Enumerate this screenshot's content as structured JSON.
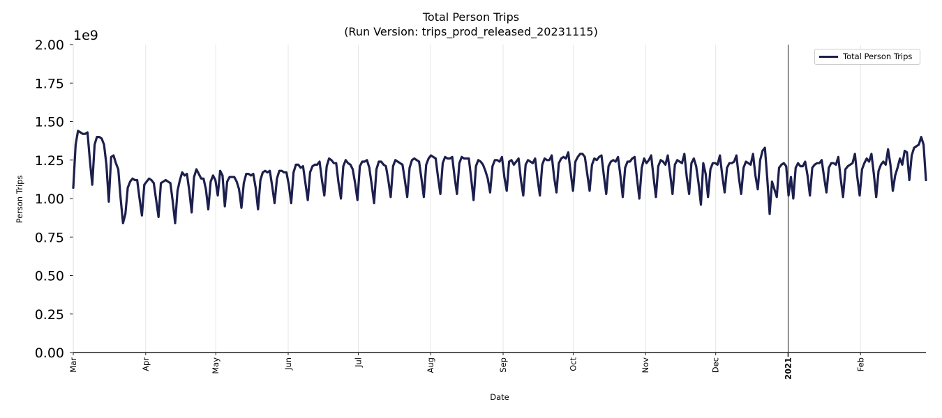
{
  "chart_data": {
    "type": "line",
    "title": "Total Person Trips",
    "subtitle": "(Run Version: trips_prod_released_20231115)",
    "xlabel": "Date",
    "ylabel": "Person Trips",
    "y_offset_label": "1e9",
    "ylim": [
      0,
      2.0
    ],
    "y_scale_multiplier": 1000000000,
    "yticks": [
      "0.00",
      "0.25",
      "0.50",
      "0.75",
      "1.00",
      "1.25",
      "1.50",
      "1.75",
      "2.00"
    ],
    "xticks": [
      {
        "label": "Mar",
        "day": 0,
        "bold": false
      },
      {
        "label": "Apr",
        "day": 31,
        "bold": false
      },
      {
        "label": "May",
        "day": 61,
        "bold": false
      },
      {
        "label": "Jun",
        "day": 92,
        "bold": false
      },
      {
        "label": "Jul",
        "day": 122,
        "bold": false
      },
      {
        "label": "Aug",
        "day": 153,
        "bold": false
      },
      {
        "label": "Sep",
        "day": 184,
        "bold": false
      },
      {
        "label": "Oct",
        "day": 214,
        "bold": false
      },
      {
        "label": "Nov",
        "day": 245,
        "bold": false
      },
      {
        "label": "Dec",
        "day": 275,
        "bold": false
      },
      {
        "label": "2021",
        "day": 306,
        "bold": true
      },
      {
        "label": "Feb",
        "day": 337,
        "bold": false
      }
    ],
    "x_start": "2020-03-01",
    "x_end": "2021-02-28",
    "vertical_marker": {
      "day": 306,
      "label": "2021-01-01"
    },
    "grid": {
      "x": true,
      "y": false
    },
    "legend": {
      "position": "upper right",
      "entries": [
        "Total Person Trips"
      ]
    },
    "series": [
      {
        "name": "Total Person Trips",
        "color": "#1c1f4d",
        "unit": "1e9",
        "x_day_offset": 0,
        "values": [
          1.07,
          1.35,
          1.44,
          1.43,
          1.42,
          1.42,
          1.43,
          1.25,
          1.09,
          1.35,
          1.4,
          1.4,
          1.39,
          1.35,
          1.22,
          0.98,
          1.27,
          1.28,
          1.23,
          1.19,
          1.0,
          0.84,
          0.9,
          1.07,
          1.11,
          1.13,
          1.12,
          1.12,
          1.0,
          0.89,
          1.09,
          1.11,
          1.13,
          1.12,
          1.1,
          0.99,
          0.88,
          1.1,
          1.11,
          1.12,
          1.11,
          1.1,
          0.98,
          0.84,
          1.05,
          1.12,
          1.17,
          1.15,
          1.16,
          1.05,
          0.91,
          1.14,
          1.19,
          1.16,
          1.13,
          1.13,
          1.06,
          0.93,
          1.11,
          1.15,
          1.12,
          1.02,
          1.18,
          1.15,
          0.95,
          1.11,
          1.14,
          1.14,
          1.14,
          1.11,
          1.06,
          0.94,
          1.1,
          1.16,
          1.16,
          1.15,
          1.16,
          1.07,
          0.93,
          1.12,
          1.17,
          1.18,
          1.17,
          1.18,
          1.08,
          0.97,
          1.13,
          1.18,
          1.18,
          1.17,
          1.17,
          1.09,
          0.97,
          1.17,
          1.22,
          1.22,
          1.2,
          1.21,
          1.1,
          0.99,
          1.17,
          1.21,
          1.22,
          1.22,
          1.24,
          1.12,
          1.02,
          1.21,
          1.26,
          1.25,
          1.23,
          1.23,
          1.1,
          1.0,
          1.21,
          1.25,
          1.23,
          1.22,
          1.19,
          1.1,
          0.99,
          1.21,
          1.24,
          1.24,
          1.25,
          1.2,
          1.09,
          0.97,
          1.19,
          1.24,
          1.24,
          1.22,
          1.21,
          1.12,
          1.01,
          1.21,
          1.25,
          1.24,
          1.23,
          1.22,
          1.12,
          1.01,
          1.2,
          1.25,
          1.26,
          1.25,
          1.24,
          1.13,
          1.01,
          1.22,
          1.26,
          1.28,
          1.27,
          1.26,
          1.14,
          1.03,
          1.23,
          1.27,
          1.26,
          1.26,
          1.27,
          1.14,
          1.03,
          1.23,
          1.27,
          1.26,
          1.26,
          1.26,
          1.13,
          0.99,
          1.21,
          1.25,
          1.24,
          1.22,
          1.18,
          1.13,
          1.04,
          1.21,
          1.25,
          1.25,
          1.24,
          1.27,
          1.14,
          1.05,
          1.24,
          1.25,
          1.22,
          1.24,
          1.26,
          1.12,
          1.02,
          1.22,
          1.25,
          1.24,
          1.23,
          1.26,
          1.13,
          1.02,
          1.22,
          1.26,
          1.25,
          1.25,
          1.28,
          1.14,
          1.04,
          1.23,
          1.26,
          1.27,
          1.26,
          1.3,
          1.17,
          1.05,
          1.24,
          1.27,
          1.29,
          1.29,
          1.27,
          1.16,
          1.05,
          1.22,
          1.26,
          1.25,
          1.27,
          1.28,
          1.15,
          1.03,
          1.21,
          1.24,
          1.25,
          1.24,
          1.27,
          1.15,
          1.01,
          1.2,
          1.24,
          1.24,
          1.26,
          1.27,
          1.13,
          1.0,
          1.2,
          1.26,
          1.23,
          1.25,
          1.28,
          1.14,
          1.01,
          1.21,
          1.25,
          1.24,
          1.22,
          1.28,
          1.16,
          1.03,
          1.22,
          1.25,
          1.24,
          1.23,
          1.29,
          1.14,
          1.03,
          1.23,
          1.26,
          1.21,
          1.1,
          0.96,
          1.23,
          1.16,
          1.01,
          1.19,
          1.23,
          1.23,
          1.22,
          1.28,
          1.15,
          1.04,
          1.2,
          1.23,
          1.23,
          1.24,
          1.28,
          1.14,
          1.03,
          1.2,
          1.24,
          1.23,
          1.22,
          1.29,
          1.15,
          1.06,
          1.25,
          1.31,
          1.33,
          1.13,
          0.9,
          1.11,
          1.06,
          1.01,
          1.2,
          1.22,
          1.23,
          1.21,
          1.02,
          1.14,
          1.0,
          1.2,
          1.23,
          1.21,
          1.21,
          1.24,
          1.15,
          1.02,
          1.2,
          1.22,
          1.23,
          1.23,
          1.25,
          1.14,
          1.04,
          1.2,
          1.23,
          1.23,
          1.22,
          1.27,
          1.13,
          1.01,
          1.19,
          1.21,
          1.22,
          1.23,
          1.29,
          1.14,
          1.02,
          1.19,
          1.23,
          1.26,
          1.24,
          1.29,
          1.16,
          1.01,
          1.18,
          1.22,
          1.24,
          1.22,
          1.32,
          1.22,
          1.05,
          1.15,
          1.2,
          1.26,
          1.22,
          1.31,
          1.3,
          1.12,
          1.28,
          1.33,
          1.34,
          1.35,
          1.4,
          1.35,
          1.12
        ]
      }
    ]
  }
}
